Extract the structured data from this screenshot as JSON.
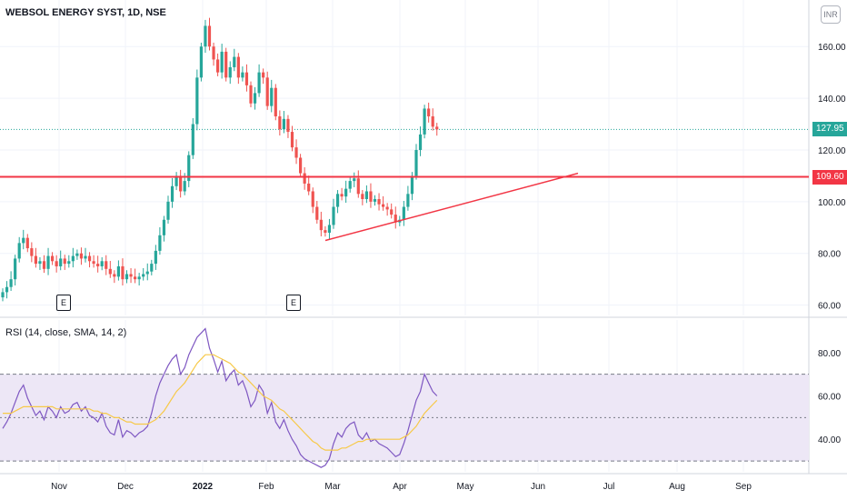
{
  "header": {
    "title": "WEBSOL ENERGY SYST, 1D, NSE",
    "currency_button": "INR"
  },
  "rsi_panel": {
    "label": "RSI (14, close, SMA, 14, 2)"
  },
  "price_tags": {
    "current": "127.95",
    "level": "109.60"
  },
  "events": [
    "E",
    "E"
  ],
  "colors": {
    "up": "#26a69a",
    "down": "#ef5350",
    "level_line": "#f23645",
    "current_tag": "#26a69a",
    "rsi_line": "#7e57c2",
    "rsi_sma": "#f7c948",
    "rsi_band": "#ede7f6"
  },
  "chart_data": [
    {
      "type": "candlestick",
      "title": "WEBSOL ENERGY SYST, 1D, NSE",
      "ylim": [
        56,
        178
      ],
      "y_ticks": [
        "160.00",
        "140.00",
        "120.00",
        "100.00",
        "80.00",
        "60.00"
      ],
      "x_ticks": [
        "Nov",
        "Dec",
        "2022",
        "Feb",
        "Mar",
        "Apr",
        "May",
        "Jun",
        "Jul",
        "Aug",
        "Sep"
      ],
      "last_close": 127.95,
      "horizontal_level": 109.6,
      "trendline": {
        "from_price": 85,
        "to_price": 111
      },
      "closes": [
        65,
        67,
        70,
        78,
        84,
        86,
        82,
        79,
        76,
        77,
        74,
        79,
        77,
        75,
        78,
        76,
        77,
        79,
        80,
        78,
        79,
        77,
        76,
        75,
        77,
        74,
        72,
        71,
        75,
        70,
        72,
        71,
        70,
        71,
        72,
        73,
        76,
        81,
        87,
        93,
        100,
        106,
        110,
        104,
        108,
        118,
        130,
        148,
        160,
        168,
        160,
        155,
        150,
        158,
        148,
        152,
        156,
        148,
        150,
        145,
        138,
        142,
        150,
        148,
        137,
        144,
        133,
        128,
        132,
        127,
        121,
        117,
        111,
        107,
        104,
        98,
        93,
        89,
        88,
        91,
        98,
        103,
        102,
        105,
        108,
        109,
        103,
        101,
        104,
        100,
        101,
        99,
        98,
        97,
        95,
        92,
        93,
        98,
        103,
        110,
        120,
        126,
        136,
        133,
        129,
        127.95
      ]
    },
    {
      "type": "line",
      "title": "RSI (14, close, SMA, 14, 2)",
      "ylim": [
        25,
        95
      ],
      "y_ticks": [
        "80.00",
        "60.00",
        "40.00"
      ],
      "bands": [
        30,
        50,
        70
      ],
      "series": [
        {
          "name": "RSI",
          "values": [
            45,
            48,
            52,
            57,
            62,
            65,
            59,
            55,
            51,
            53,
            49,
            55,
            53,
            50,
            55,
            52,
            53,
            56,
            57,
            53,
            55,
            51,
            50,
            48,
            52,
            46,
            43,
            42,
            49,
            41,
            44,
            43,
            41,
            43,
            44,
            46,
            52,
            60,
            66,
            70,
            74,
            77,
            79,
            70,
            73,
            79,
            83,
            87,
            89,
            91,
            82,
            77,
            71,
            76,
            67,
            70,
            72,
            65,
            67,
            62,
            55,
            58,
            65,
            62,
            52,
            57,
            48,
            45,
            49,
            44,
            40,
            37,
            33,
            31,
            30,
            29,
            28,
            27,
            28,
            31,
            38,
            43,
            41,
            45,
            47,
            48,
            42,
            40,
            43,
            39,
            40,
            38,
            37,
            36,
            34,
            32,
            33,
            38,
            44,
            51,
            58,
            62,
            70,
            66,
            62,
            60
          ]
        },
        {
          "name": "SMA",
          "values": [
            52,
            52,
            52,
            53,
            54,
            55,
            55,
            55,
            55,
            55,
            55,
            55,
            55,
            54,
            54,
            54,
            54,
            54,
            54,
            54,
            54,
            54,
            53,
            53,
            52,
            52,
            51,
            50,
            50,
            49,
            48,
            48,
            47,
            47,
            47,
            47,
            48,
            49,
            51,
            53,
            56,
            59,
            62,
            64,
            66,
            69,
            72,
            75,
            77,
            79,
            79,
            79,
            78,
            77,
            76,
            75,
            73,
            71,
            70,
            68,
            66,
            64,
            62,
            60,
            59,
            58,
            56,
            54,
            53,
            51,
            49,
            47,
            45,
            43,
            41,
            39,
            38,
            36,
            35,
            35,
            35,
            35,
            36,
            36,
            37,
            38,
            39,
            39,
            40,
            40,
            40,
            40,
            40,
            40,
            40,
            40,
            40,
            41,
            42,
            44,
            46,
            49,
            52,
            54,
            56,
            58
          ]
        }
      ]
    }
  ]
}
